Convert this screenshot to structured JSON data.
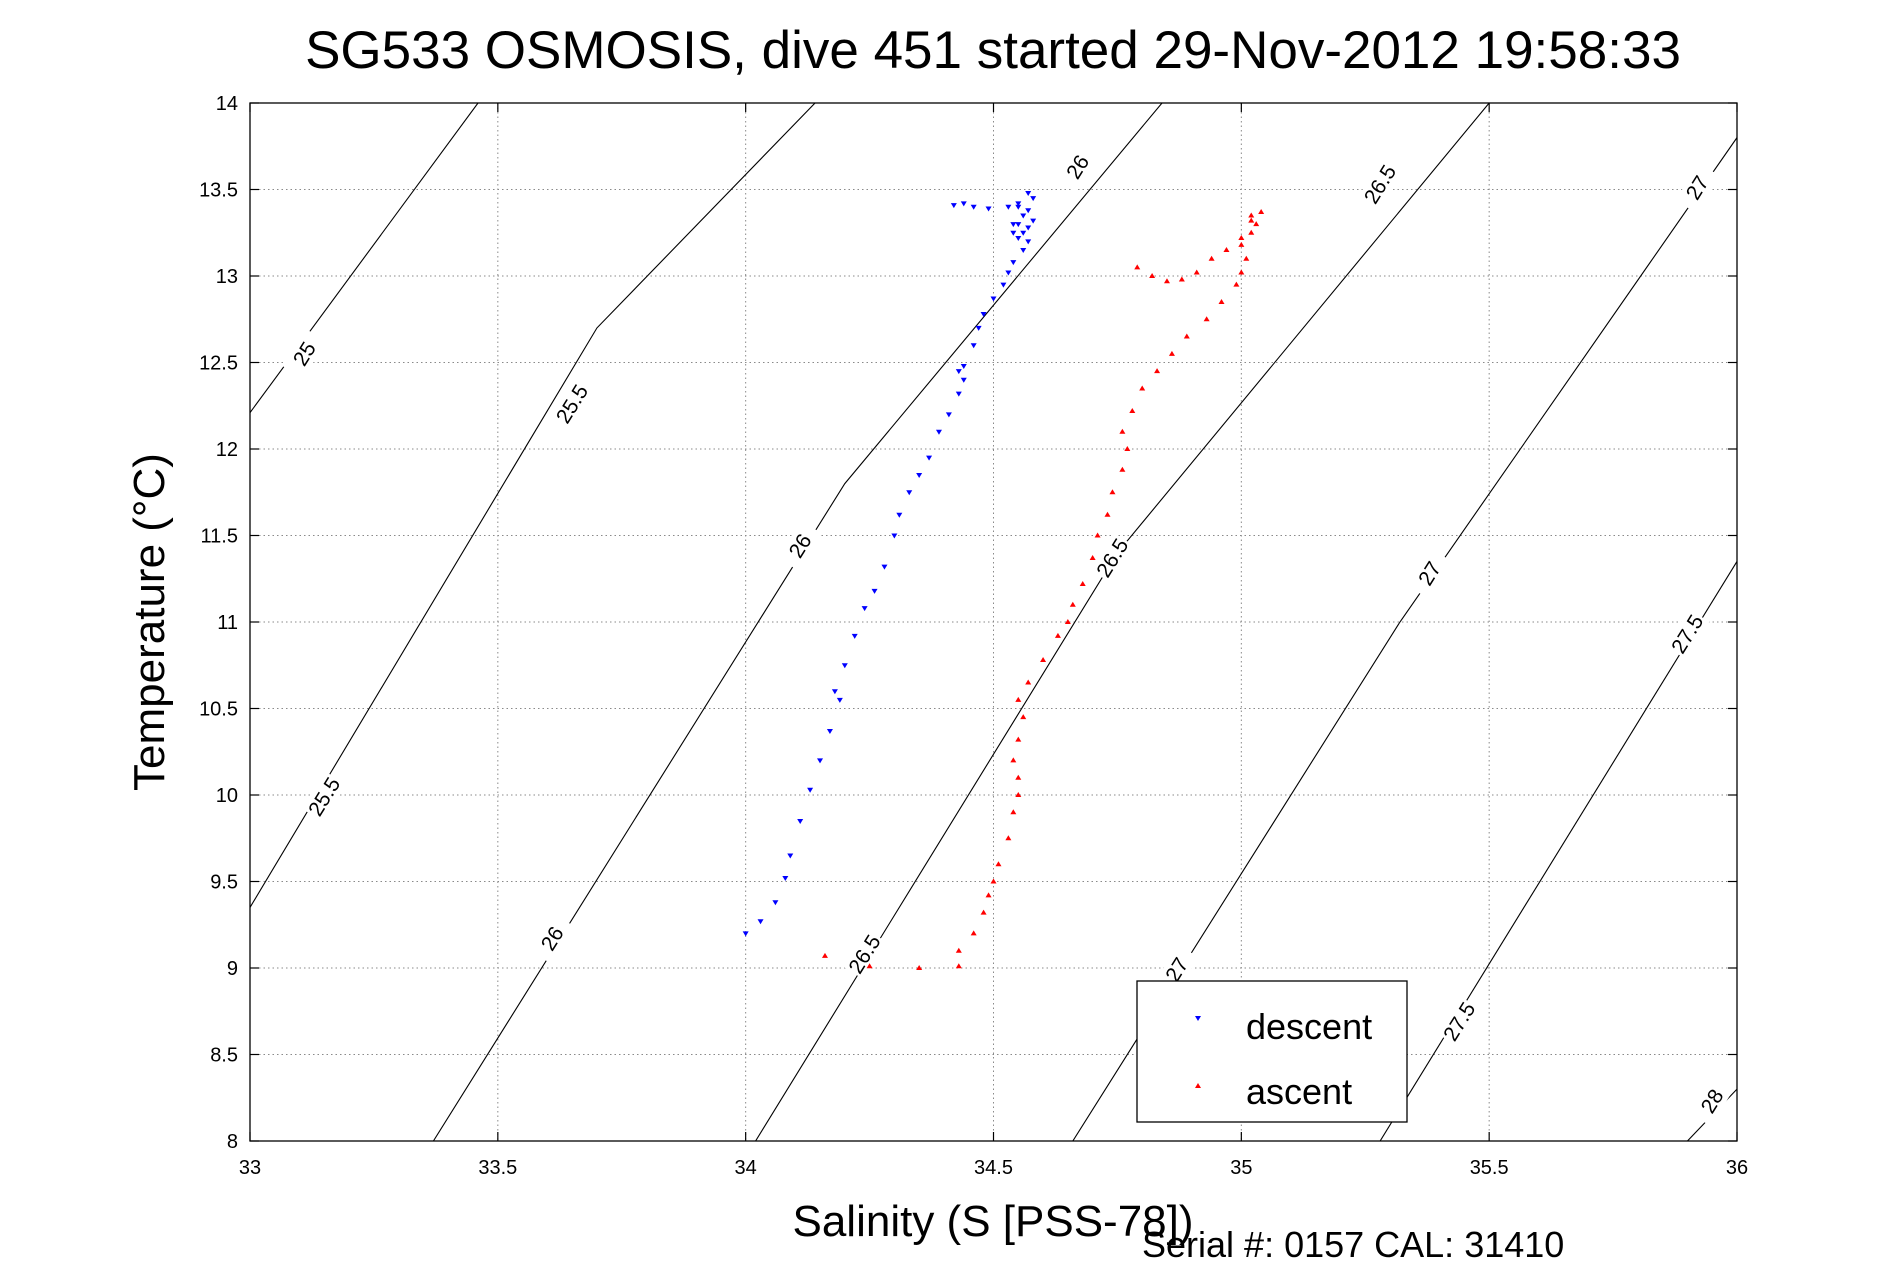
{
  "chart_data": {
    "type": "scatter",
    "title": "SG533 OSMOSIS, dive 451 started 29-Nov-2012 19:58:33",
    "xlabel": "Salinity (S [PSS-78])",
    "ylabel": "Temperature (°C)",
    "xlim": [
      33,
      36
    ],
    "ylim": [
      8,
      14
    ],
    "x_ticks": [
      "33",
      "33.5",
      "34",
      "34.5",
      "35",
      "35.5",
      "36"
    ],
    "y_ticks": [
      "8",
      "8.5",
      "9",
      "9.5",
      "10",
      "10.5",
      "11",
      "11.5",
      "12",
      "12.5",
      "13",
      "13.5",
      "14"
    ],
    "grid": true,
    "legend_position": "bottom-right",
    "density_contours": [
      {
        "level": 25,
        "label": "25",
        "points": [
          [
            33.0,
            12.21
          ],
          [
            33.46,
            14.0
          ]
        ],
        "label_positions": [
          [
            33.11,
            12.55
          ]
        ]
      },
      {
        "level": 25.5,
        "label": "25.5",
        "points": [
          [
            33.0,
            9.35
          ],
          [
            33.7,
            12.7
          ],
          [
            34.14,
            14.0
          ]
        ],
        "label_positions": [
          [
            33.15,
            9.99
          ],
          [
            33.65,
            12.26
          ]
        ]
      },
      {
        "level": 26,
        "label": "26",
        "points": [
          [
            33.37,
            8.0
          ],
          [
            34.2,
            11.8
          ],
          [
            34.84,
            14.0
          ]
        ],
        "label_positions": [
          [
            33.61,
            9.17
          ],
          [
            34.11,
            11.44
          ],
          [
            34.67,
            13.63
          ]
        ]
      },
      {
        "level": 26.5,
        "label": "26.5",
        "points": [
          [
            34.02,
            8.0
          ],
          [
            34.75,
            11.4
          ],
          [
            35.5,
            14.0
          ]
        ],
        "label_positions": [
          [
            34.24,
            9.08
          ],
          [
            34.74,
            11.37
          ],
          [
            35.28,
            13.53
          ]
        ]
      },
      {
        "level": 27,
        "label": "27",
        "points": [
          [
            34.66,
            8.0
          ],
          [
            35.32,
            11.0
          ],
          [
            36.0,
            13.8
          ]
        ],
        "label_positions": [
          [
            34.87,
            8.99
          ],
          [
            35.38,
            11.28
          ],
          [
            35.92,
            13.51
          ]
        ]
      },
      {
        "level": 27.5,
        "label": "27.5",
        "points": [
          [
            35.28,
            8.0
          ],
          [
            36.0,
            11.35
          ]
        ],
        "label_positions": [
          [
            35.44,
            8.69
          ],
          [
            35.9,
            10.93
          ]
        ]
      },
      {
        "level": 28,
        "label": "28",
        "points": [
          [
            35.9,
            8.0
          ],
          [
            36.0,
            8.3
          ]
        ],
        "label_positions": [
          [
            35.95,
            8.23
          ]
        ]
      }
    ],
    "series": [
      {
        "name": "descent",
        "color": "#0000ff",
        "marker": "triangle-down",
        "x": [
          34.0,
          34.03,
          34.06,
          34.08,
          34.09,
          34.11,
          34.13,
          34.15,
          34.17,
          34.19,
          34.18,
          34.2,
          34.22,
          34.24,
          34.26,
          34.28,
          34.3,
          34.31,
          34.33,
          34.35,
          34.37,
          34.39,
          34.41,
          34.43,
          34.44,
          34.43,
          34.44,
          34.46,
          34.47,
          34.48,
          34.5,
          34.52,
          34.53,
          34.54,
          34.56,
          34.55,
          34.54,
          34.57,
          34.55,
          34.58,
          34.56,
          34.57,
          34.55,
          34.58,
          34.57,
          34.54,
          34.56,
          34.57,
          34.55,
          34.53,
          34.49,
          34.46,
          34.44,
          34.42
        ],
        "y": [
          9.2,
          9.27,
          9.38,
          9.52,
          9.65,
          9.85,
          10.03,
          10.2,
          10.37,
          10.55,
          10.6,
          10.75,
          10.92,
          11.08,
          11.18,
          11.32,
          11.5,
          11.62,
          11.75,
          11.85,
          11.95,
          12.1,
          12.2,
          12.32,
          12.4,
          12.45,
          12.48,
          12.6,
          12.7,
          12.78,
          12.87,
          12.95,
          13.02,
          13.08,
          13.15,
          13.22,
          13.25,
          13.28,
          13.3,
          13.32,
          13.35,
          13.38,
          13.42,
          13.45,
          13.48,
          13.3,
          13.25,
          13.2,
          13.4,
          13.4,
          13.39,
          13.4,
          13.42,
          13.41
        ]
      },
      {
        "name": "ascent",
        "color": "#ff0000",
        "marker": "triangle-up",
        "x": [
          34.16,
          34.25,
          34.35,
          34.43,
          34.43,
          34.46,
          34.48,
          34.49,
          34.5,
          34.51,
          34.53,
          34.54,
          34.55,
          34.55,
          34.54,
          34.55,
          34.56,
          34.55,
          34.57,
          34.6,
          34.63,
          34.65,
          34.66,
          34.68,
          34.7,
          34.71,
          34.73,
          34.74,
          34.76,
          34.77,
          34.76,
          34.78,
          34.8,
          34.83,
          34.86,
          34.89,
          34.93,
          34.96,
          34.99,
          35.0,
          35.01,
          35.0,
          35.02,
          35.03,
          35.02,
          35.04,
          35.02,
          35.0,
          34.97,
          34.94,
          34.91,
          34.88,
          34.85,
          34.82,
          34.79
        ],
        "y": [
          9.07,
          9.01,
          9.0,
          9.01,
          9.1,
          9.2,
          9.32,
          9.42,
          9.5,
          9.6,
          9.75,
          9.9,
          10.0,
          10.1,
          10.2,
          10.32,
          10.45,
          10.55,
          10.65,
          10.78,
          10.92,
          11.0,
          11.1,
          11.22,
          11.37,
          11.5,
          11.62,
          11.75,
          11.88,
          12.0,
          12.1,
          12.22,
          12.35,
          12.45,
          12.55,
          12.65,
          12.75,
          12.85,
          12.95,
          13.02,
          13.1,
          13.18,
          13.25,
          13.3,
          13.35,
          13.37,
          13.32,
          13.22,
          13.15,
          13.1,
          13.02,
          12.98,
          12.97,
          13.0,
          13.05
        ]
      }
    ]
  },
  "footer": {
    "text": "Serial #: 0157  CAL: 31410"
  }
}
